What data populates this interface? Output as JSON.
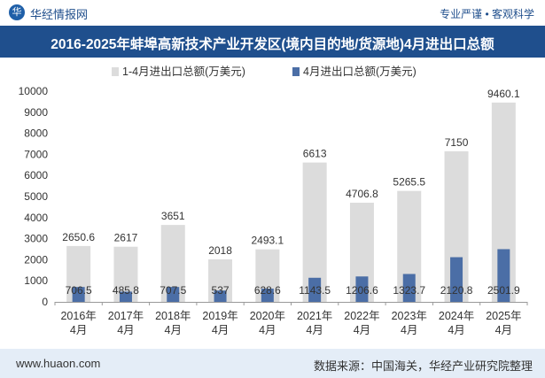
{
  "header": {
    "brand": "华经情报网",
    "tagline": "专业严谨 • 客观科学"
  },
  "title": "2016-2025年蚌埠高新技术产业开发区(境内目的地/货源地)4月进出口总额",
  "footer": {
    "url": "www.huaon.com",
    "source": "数据来源：中国海关，华经产业研究院整理"
  },
  "colors": {
    "series1": "#dcdcdc",
    "series2": "#4b6ea6",
    "title_bg": "#1f4f8d"
  },
  "chart_data": {
    "type": "bar",
    "categories": [
      "2016年\n4月",
      "2017年\n4月",
      "2018年\n4月",
      "2019年\n4月",
      "2020年\n4月",
      "2021年\n4月",
      "2022年\n4月",
      "2023年\n4月",
      "2024年\n4月",
      "2025年\n4月"
    ],
    "series": [
      {
        "name": "1-4月进出口总额(万美元)",
        "values": [
          2650.6,
          2617,
          3651,
          2018,
          2493.1,
          6613,
          4706.8,
          5265.5,
          7150,
          9460.1
        ],
        "labels": [
          "2650.6",
          "2617",
          "3651",
          "2018",
          "2493.1",
          "6613",
          "4706.8",
          "5265.5",
          "7150",
          "9460.1"
        ]
      },
      {
        "name": "4月进出口总额(万美元)",
        "values": [
          706.5,
          485.8,
          707.5,
          537,
          628.6,
          1143.5,
          1206.6,
          1323.7,
          2120.8,
          2501.9
        ],
        "labels": [
          "706.5",
          "485.8",
          "707.5",
          "537",
          "628.6",
          "1143.5",
          "1206.6",
          "1323.7",
          "2120.8",
          "2501.9"
        ]
      }
    ],
    "ylim": [
      0,
      10000
    ],
    "yticks": [
      "0",
      "1000",
      "2000",
      "3000",
      "4000",
      "5000",
      "6000",
      "7000",
      "8000",
      "9000",
      "10000"
    ],
    "legend_position": "top"
  }
}
